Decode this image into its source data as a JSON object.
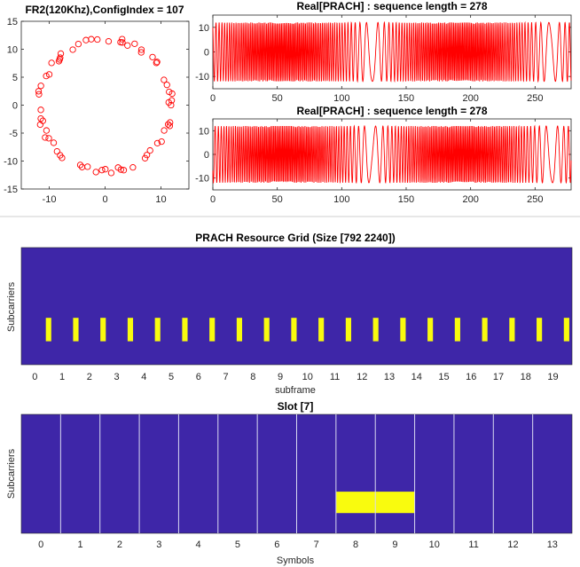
{
  "colors": {
    "signal": "#ff0000",
    "grid_bg": "#3e26a8",
    "grid_fill": "#f9fb0e",
    "sym_line": "#d8d8f0",
    "axis": "#262626",
    "divider": "#cfcfcf"
  },
  "chart_data": [
    {
      "id": "constellation",
      "type": "scatter",
      "title": "FR2(120Khz),ConfigIndex = 107",
      "xlim": [
        -15,
        15
      ],
      "ylim": [
        -15,
        15
      ],
      "xticks": [
        -10,
        0,
        10
      ],
      "yticks": [
        -15,
        -10,
        -5,
        0,
        5,
        10,
        15
      ],
      "marker": "circle",
      "points": 64,
      "radius": 11.8
    },
    {
      "id": "real1",
      "type": "line",
      "title": "Real[PRACH] : sequence length = 278",
      "xlim": [
        0,
        278
      ],
      "ylim": [
        -15,
        15
      ],
      "xticks": [
        0,
        50,
        100,
        150,
        200,
        250
      ],
      "yticks": [
        -10,
        0,
        10
      ],
      "amplitude": 12
    },
    {
      "id": "real2",
      "type": "line",
      "title": "Real[PRACH] : sequence length = 278",
      "xlim": [
        0,
        278
      ],
      "ylim": [
        -15,
        15
      ],
      "xticks": [
        0,
        50,
        100,
        150,
        200,
        250
      ],
      "yticks": [
        -10,
        0,
        10
      ],
      "amplitude": 12
    },
    {
      "id": "resource-grid",
      "type": "heatmap",
      "title": "PRACH Resource Grid (Size [792 2240])",
      "xlabel": "subframe",
      "ylabel": "Subcarriers",
      "xticks": [
        0,
        1,
        2,
        3,
        4,
        5,
        6,
        7,
        8,
        9,
        10,
        11,
        12,
        13,
        14,
        15,
        16,
        17,
        18,
        19
      ],
      "xlim": [
        -0.5,
        19.7
      ],
      "allocations": [
        {
          "x0": 0.4,
          "x1": 0.6
        },
        {
          "x0": 1.4,
          "x1": 1.6
        },
        {
          "x0": 2.4,
          "x1": 2.6
        },
        {
          "x0": 3.4,
          "x1": 3.6
        },
        {
          "x0": 4.4,
          "x1": 4.6
        },
        {
          "x0": 5.4,
          "x1": 5.6
        },
        {
          "x0": 6.4,
          "x1": 6.6
        },
        {
          "x0": 7.4,
          "x1": 7.6
        },
        {
          "x0": 8.4,
          "x1": 8.6
        },
        {
          "x0": 9.4,
          "x1": 9.6
        },
        {
          "x0": 10.4,
          "x1": 10.6
        },
        {
          "x0": 11.4,
          "x1": 11.6
        },
        {
          "x0": 12.4,
          "x1": 12.6
        },
        {
          "x0": 13.4,
          "x1": 13.6
        },
        {
          "x0": 14.4,
          "x1": 14.6
        },
        {
          "x0": 15.4,
          "x1": 15.6
        },
        {
          "x0": 16.4,
          "x1": 16.6
        },
        {
          "x0": 17.4,
          "x1": 17.6
        },
        {
          "x0": 18.4,
          "x1": 18.6
        },
        {
          "x0": 19.4,
          "x1": 19.6
        }
      ],
      "alloc_band": [
        0.2,
        0.4
      ]
    },
    {
      "id": "slot",
      "type": "heatmap",
      "title": "Slot [7]",
      "xlabel": "Symbols",
      "ylabel": "Subcarriers",
      "xticks": [
        0,
        1,
        2,
        3,
        4,
        5,
        6,
        7,
        8,
        9,
        10,
        11,
        12,
        13
      ],
      "xlim": [
        -0.5,
        13.5
      ],
      "symbol_lines": [
        0.5,
        1.5,
        2.5,
        3.5,
        4.5,
        5.5,
        6.5,
        7.5,
        8.5,
        9.5,
        10.5,
        11.5,
        12.5
      ],
      "allocations": [
        {
          "x0": 7.5,
          "x1": 9.5
        }
      ],
      "alloc_band": [
        0.17,
        0.35
      ]
    }
  ]
}
